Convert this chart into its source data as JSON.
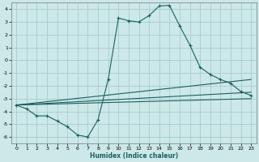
{
  "xlabel": "Humidex (Indice chaleur)",
  "bg_color": "#cce8e8",
  "grid_color": "#a8cccc",
  "line_color": "#1a6060",
  "xlim": [
    -0.5,
    23.5
  ],
  "ylim": [
    -6.5,
    4.5
  ],
  "xticks": [
    0,
    1,
    2,
    3,
    4,
    5,
    6,
    7,
    8,
    9,
    10,
    11,
    12,
    13,
    14,
    15,
    16,
    17,
    18,
    19,
    20,
    21,
    22,
    23
  ],
  "yticks": [
    -6,
    -5,
    -4,
    -3,
    -2,
    -1,
    0,
    1,
    2,
    3,
    4
  ],
  "curve1_x": [
    0,
    1,
    2,
    3,
    4,
    5,
    6,
    7,
    8,
    9,
    10,
    11,
    12,
    13,
    14,
    15,
    16,
    17,
    18,
    19,
    20,
    21,
    22,
    23
  ],
  "curve1_y": [
    -3.5,
    -3.8,
    -4.35,
    -4.35,
    -4.75,
    -5.2,
    -5.85,
    -6.0,
    -4.65,
    -1.5,
    3.3,
    3.1,
    3.0,
    3.5,
    4.25,
    4.3,
    2.7,
    1.2,
    -0.55,
    -1.1,
    -1.5,
    -1.8,
    -2.45,
    -2.75
  ],
  "line1_x": [
    0,
    23
  ],
  "line1_y": [
    -3.5,
    -1.5
  ],
  "line2_x": [
    0,
    23
  ],
  "line2_y": [
    -3.5,
    -2.5
  ],
  "line3_x": [
    0,
    23
  ],
  "line3_y": [
    -3.5,
    -3.0
  ]
}
